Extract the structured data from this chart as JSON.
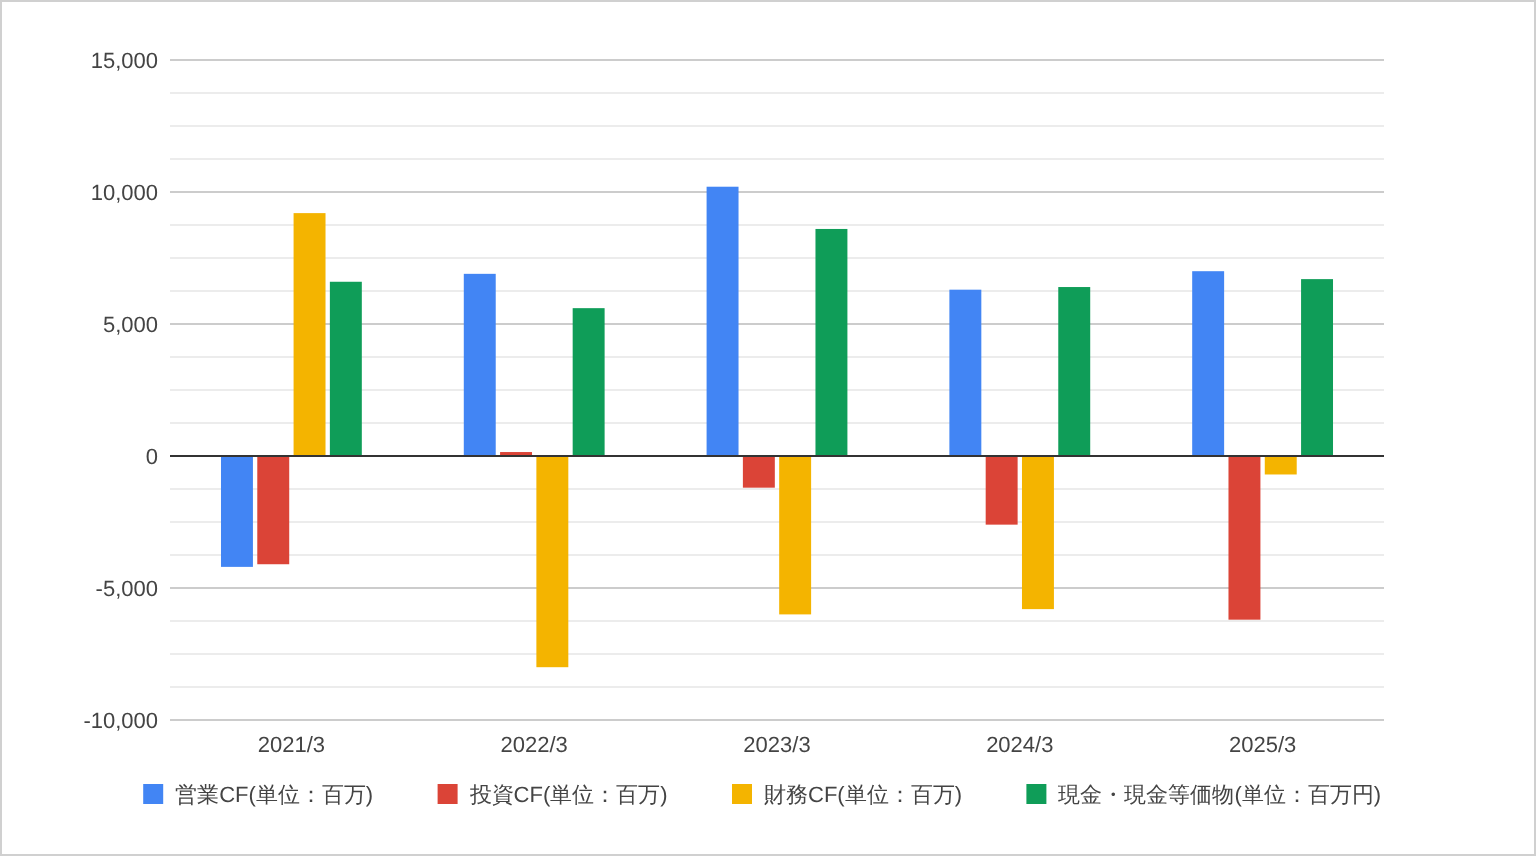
{
  "chart_data": {
    "type": "bar",
    "categories": [
      "2021/3",
      "2022/3",
      "2023/3",
      "2024/3",
      "2025/3"
    ],
    "series": [
      {
        "name": "営業CF(単位：百万)",
        "color": "#4285f4",
        "values": [
          -4200,
          6900,
          10200,
          6300,
          7000
        ]
      },
      {
        "name": "投資CF(単位：百万)",
        "color": "#db4437",
        "values": [
          -4100,
          150,
          -1200,
          -2600,
          -6200
        ]
      },
      {
        "name": "財務CF(単位：百万)",
        "color": "#f4b400",
        "values": [
          9200,
          -8000,
          -6000,
          -5800,
          -700
        ]
      },
      {
        "name": "現金・現金等価物(単位：百万円)",
        "color": "#0f9d58",
        "values": [
          6600,
          5600,
          8600,
          6400,
          6700
        ]
      }
    ],
    "ylim": [
      -10000,
      15000
    ],
    "yticks": [
      {
        "value": -10000,
        "label": "-10,000"
      },
      {
        "value": -8750,
        "label": null
      },
      {
        "value": -7500,
        "label": null
      },
      {
        "value": -6250,
        "label": null
      },
      {
        "value": -5000,
        "label": "-5,000"
      },
      {
        "value": -3750,
        "label": null
      },
      {
        "value": -2500,
        "label": null
      },
      {
        "value": -1250,
        "label": null
      },
      0,
      {
        "value": 1250,
        "label": null
      },
      {
        "value": 2500,
        "label": null
      },
      {
        "value": 3750,
        "label": null
      },
      {
        "value": 5000,
        "label": "5,000"
      },
      {
        "value": 6250,
        "label": null
      },
      {
        "value": 7500,
        "label": null
      },
      {
        "value": 8750,
        "label": null
      },
      {
        "value": 10000,
        "label": "10,000"
      },
      {
        "value": 11250,
        "label": null
      },
      {
        "value": 12500,
        "label": null
      },
      {
        "value": 13750,
        "label": null
      },
      {
        "value": 15000,
        "label": "15,000"
      }
    ],
    "grid": true,
    "legend": "bottom"
  }
}
